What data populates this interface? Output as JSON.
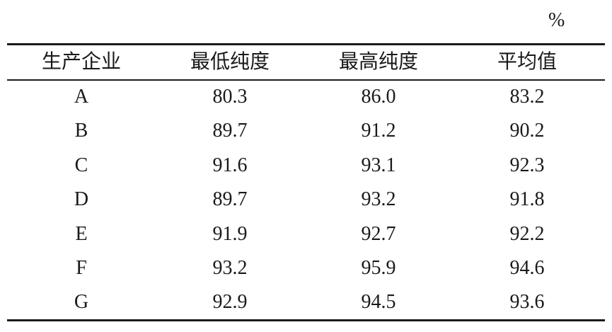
{
  "table": {
    "unit": "%",
    "header": [
      "生产企业",
      "最低纯度",
      "最高纯度",
      "平均值"
    ],
    "rows": [
      [
        "A",
        "80.3",
        "86.0",
        "83.2"
      ],
      [
        "B",
        "89.7",
        "91.2",
        "90.2"
      ],
      [
        "C",
        "91.6",
        "93.1",
        "92.3"
      ],
      [
        "D",
        "89.7",
        "93.2",
        "91.8"
      ],
      [
        "E",
        "91.9",
        "92.7",
        "92.2"
      ],
      [
        "F",
        "93.2",
        "95.9",
        "94.6"
      ],
      [
        "G",
        "92.9",
        "94.5",
        "93.6"
      ]
    ]
  }
}
